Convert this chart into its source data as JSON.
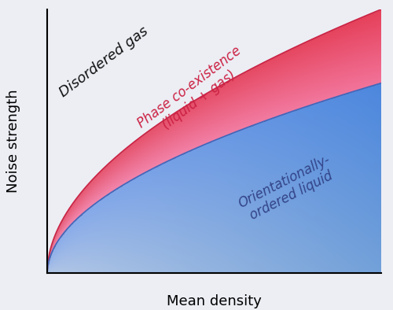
{
  "xlabel": "Mean density",
  "ylabel": "Noise strength",
  "background_color": "#eceef4",
  "curve1_color": "#cc2244",
  "curve2_color": "#4466bb",
  "region_gas_label": "Disordered gas",
  "region_phase_label": "Phase co-existence\n(liquid + gas)",
  "region_liquid_label": "Orientationally-\nordered liquid",
  "region_gas_color": "#111111",
  "region_phase_color": "#cc2244",
  "region_liquid_color": "#334488",
  "xlabel_fontsize": 13,
  "ylabel_fontsize": 13,
  "label_fontsize": 12,
  "figsize": [
    5.0,
    3.94
  ],
  "dpi": 100,
  "upper_curve_scale": 1.0,
  "lower_curve_scale": 0.72,
  "upper_curve_power": 0.52,
  "lower_curve_power": 0.52
}
